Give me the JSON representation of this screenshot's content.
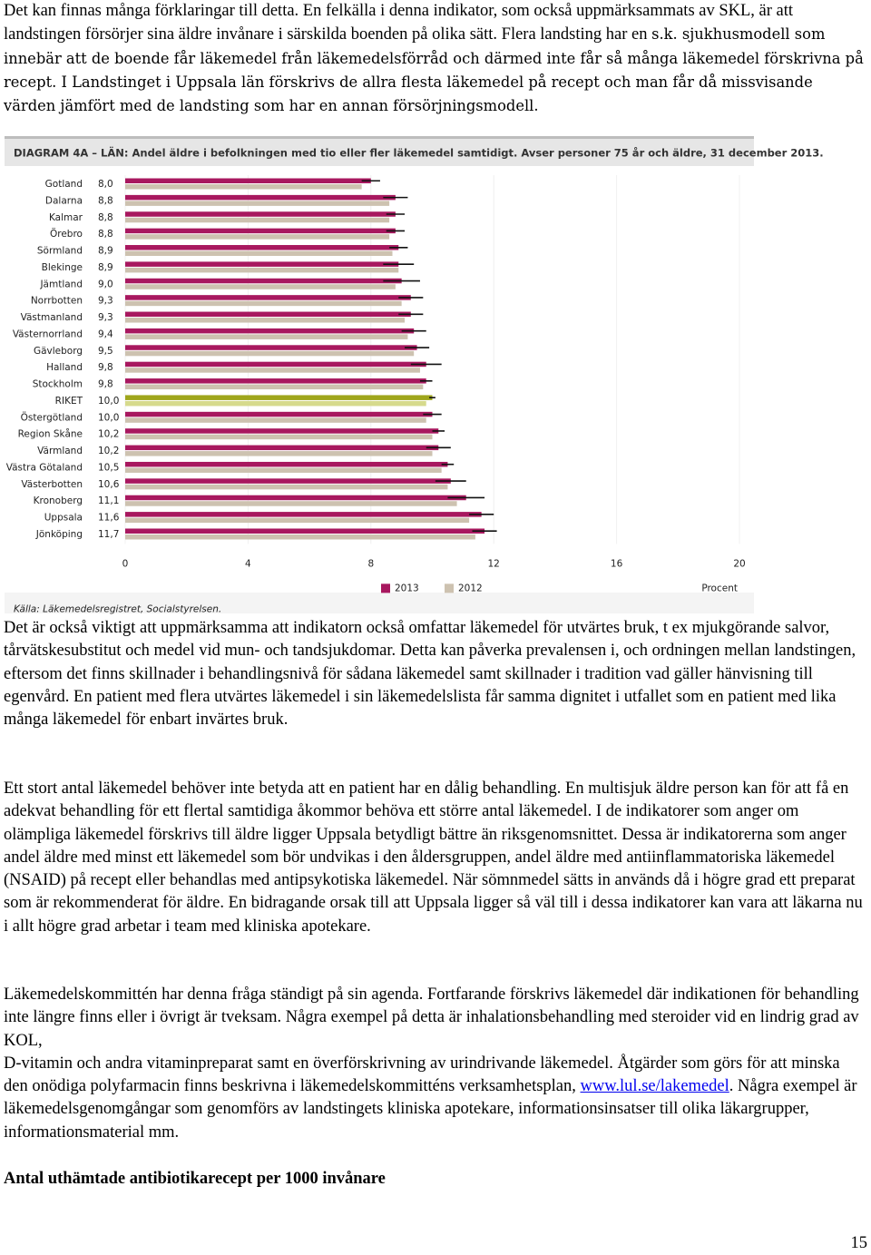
{
  "paragraph_1": {
    "part_1": "Det kan finnas många förklaringar till detta. En felkälla i denna indikator, som också uppmärksammats av SKL, är att landstingen försörjer sina äldre invånare i särskilda boenden på olika sätt. Flera landsting har en",
    "part_2": "s.k. sjukhusmodell som innebär att de boende får läkemedel från läkemedelsförråd och därmed inte får så många läkemedel förskrivna på recept. I Landstinget i Uppsala län förskrivs de allra flesta läkemedel på recept och man får då missvisande värden jämfört med de landsting som har en annan försörjningsmodell."
  },
  "chart_data": {
    "type": "bar",
    "orientation": "horizontal",
    "title": "DIAGRAM 4A – LÄN: Andel äldre i befolkningen med tio eller fler läkemedel samtidigt. Avser personer 75 år och äldre, 31 december 2013.",
    "categories": [
      "Gotland",
      "Dalarna",
      "Kalmar",
      "Örebro",
      "Sörmland",
      "Blekinge",
      "Jämtland",
      "Norrbotten",
      "Västmanland",
      "Västernorrland",
      "Gävleborg",
      "Halland",
      "Stockholm",
      "RIKET",
      "Östergötland",
      "Region Skåne",
      "Värmland",
      "Västra Götaland",
      "Västerbotten",
      "Kronoberg",
      "Uppsala",
      "Jönköping"
    ],
    "highlight_index": 13,
    "series": [
      {
        "name": "2013",
        "color": "#a8185f",
        "highlight_color": "#9fa61c",
        "values": [
          8.0,
          8.8,
          8.8,
          8.8,
          8.9,
          8.9,
          9.0,
          9.3,
          9.3,
          9.4,
          9.5,
          9.8,
          9.8,
          10.0,
          10.0,
          10.2,
          10.2,
          10.5,
          10.6,
          11.1,
          11.6,
          11.7
        ],
        "value_labels": [
          "8,0",
          "8,8",
          "8,8",
          "8,8",
          "8,9",
          "8,9",
          "9,0",
          "9,3",
          "9,3",
          "9,4",
          "9,5",
          "9,8",
          "9,8",
          "10,0",
          "10,0",
          "10,2",
          "10,2",
          "10,5",
          "10,6",
          "11,1",
          "11,6",
          "11,7"
        ],
        "errors": [
          0.3,
          0.4,
          0.3,
          0.3,
          0.3,
          0.5,
          0.6,
          0.4,
          0.4,
          0.4,
          0.4,
          0.5,
          0.2,
          0.1,
          0.3,
          0.2,
          0.4,
          0.2,
          0.5,
          0.6,
          0.4,
          0.4
        ]
      },
      {
        "name": "2012",
        "color": "#cdc2b0",
        "highlight_color": "#d6da8c",
        "values": [
          7.7,
          8.6,
          8.6,
          8.6,
          8.7,
          8.9,
          8.8,
          9.0,
          9.1,
          9.2,
          9.4,
          9.6,
          9.7,
          9.8,
          9.8,
          10.0,
          10.0,
          10.3,
          10.5,
          10.8,
          11.2,
          11.4
        ]
      }
    ],
    "xlim": [
      0,
      20
    ],
    "xticks": [
      0,
      4,
      8,
      12,
      16,
      20
    ],
    "xlabel": "Procent",
    "source": "Källa: Läkemedelsregistret, Socialstyrelsen."
  },
  "paragraph_2": "Det är också viktigt att uppmärksamma att indikatorn också omfattar läkemedel för utvärtes bruk, t ex mjukgörande salvor, tårvätskesubstitut och medel vid mun- och tandsjukdomar. Detta kan påverka prevalensen i, och ordningen mellan landstingen, eftersom det finns skillnader i behandlingsnivå för sådana läkemedel samt skillnader i tradition vad gäller hänvisning till egenvård. En patient med flera utvärtes läkemedel i sin läkemedelslista får samma dignitet i utfallet som en patient med lika många läkemedel för enbart invärtes bruk.",
  "paragraph_3": "Ett stort antal läkemedel behöver inte betyda att en patient har en dålig behandling. En multisjuk äldre person kan för att få en adekvat behandling för ett flertal samtidiga åkommor behöva ett större antal läkemedel. I de indikatorer som anger om olämpliga läkemedel förskrivs till äldre ligger Uppsala betydligt bättre än riksgenomsnittet. Dessa är indikatorerna som anger andel äldre med minst ett läkemedel som bör undvikas i den åldersgruppen, andel äldre med antiinflammatoriska läkemedel (NSAID) på recept eller behandlas med antipsykotiska läkemedel. När sömnmedel sätts in används då i högre grad ett preparat som är rekommenderat för äldre. En bidragande orsak till att Uppsala ligger så väl till i dessa indikatorer kan vara att läkarna nu i allt högre grad arbetar i team med kliniska apotekare.",
  "paragraph_4": {
    "part_1": "Läkemedelskommittén har denna fråga ständigt på sin agenda. Fortfarande förskrivs läkemedel där indikationen för behandling inte längre finns eller i övrigt är tveksam. Några exempel på detta är inhalationsbehandling med steroider vid en lindrig grad av KOL,",
    "part_2": "D-vitamin och andra vitaminpreparat samt en överförskrivning av urindrivande läkemedel. Åtgärder som görs för att minska den onödiga polyfarmacin finns beskrivna i läkemedelskommitténs verksamhetsplan,",
    "link": "www.lul.se/lakemedel",
    "part_3": ". Några exempel är läkemedelsgenomgångar som genomförs av landstingets kliniska apotekare, informationsinsatser till olika läkargrupper, informationsmaterial mm."
  },
  "heading": "Antal uthämtade antibiotikarecept per 1000 invånare",
  "page_number": "15"
}
